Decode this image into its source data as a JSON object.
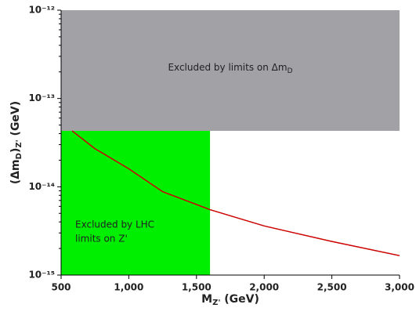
{
  "chart_data": {
    "type": "line",
    "x_label": {
      "main": "M",
      "sub": "Z'",
      "unit": " (GeV)"
    },
    "y_label": {
      "main": "(Δm",
      "sub": "D",
      "close": ")",
      "sub2": "Z'",
      "unit": " (GeV)"
    },
    "xlim": [
      500,
      3000
    ],
    "ylim": [
      1e-15,
      1e-12
    ],
    "log_y": true,
    "xticks": [
      500,
      {
        "value": 1000,
        "label": "1,000"
      },
      {
        "value": 1500,
        "label": "1,500"
      },
      {
        "value": 2000,
        "label": "2,000"
      },
      {
        "value": 2500,
        "label": "2,500"
      },
      {
        "value": 3000,
        "label": "3,000"
      }
    ],
    "yticks": [
      {
        "value": 1e-15,
        "label": "10⁻¹⁵"
      },
      {
        "value": 1e-14,
        "label": "10⁻¹⁴"
      },
      {
        "value": 1e-13,
        "label": "10⁻¹³"
      },
      {
        "value": 1e-12,
        "label": "10⁻¹²"
      }
    ],
    "regions": [
      {
        "label": "Excluded by limits on Δm",
        "label_sub": "D",
        "color": "#a2a1a6",
        "xlim": [
          500,
          3000
        ],
        "ylim": [
          4.3e-14,
          1e-12
        ]
      },
      {
        "label_lines": [
          "Excluded by LHC",
          "limits on Z'"
        ],
        "color": "#00ee00",
        "xlim": [
          500,
          1600
        ],
        "ylim": [
          1e-15,
          4.3e-14
        ]
      }
    ],
    "series": [
      {
        "color": "#cc0000",
        "x": [
          581,
          750,
          1000,
          1250,
          1600,
          2000,
          2500,
          3000
        ],
        "values": [
          4.3e-14,
          2.7e-14,
          1.6e-14,
          8.8e-15,
          5.5e-15,
          3.6e-15,
          2.4e-15,
          1.66e-15
        ]
      }
    ]
  }
}
